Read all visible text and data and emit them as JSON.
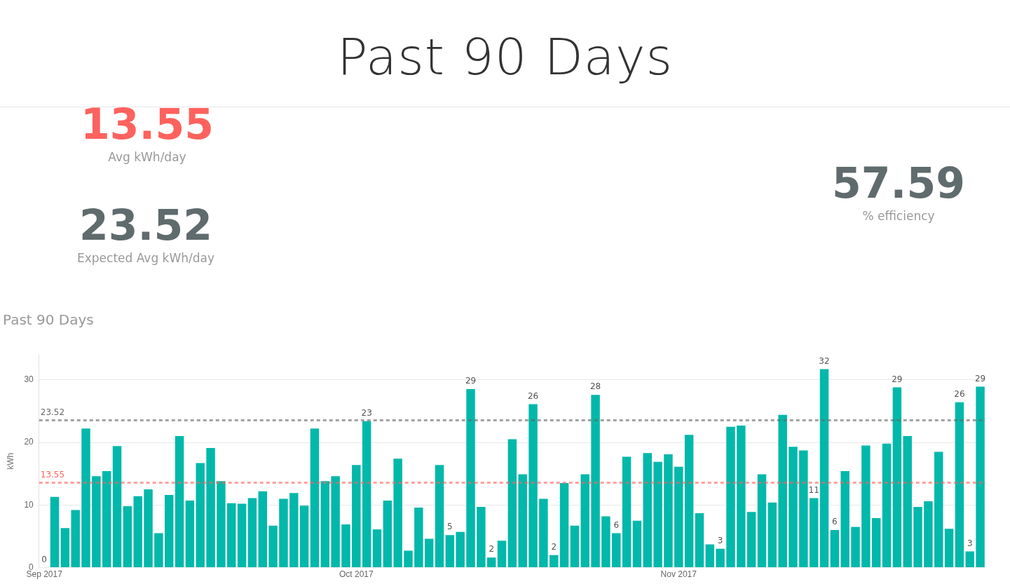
{
  "chart_data": [
    {
      "type": "other",
      "title": "Past 90 Days",
      "annotations": [
        "13.55",
        "Avg kWh/day",
        "23.52",
        "Expected Avg kWh/day",
        "57.59",
        "% efficiency"
      ]
    },
    {
      "type": "bar",
      "title": "Past 90 Days",
      "ylabel": "kWh",
      "color": "#01b8aa",
      "x": [
        "2017-09-01",
        "2017-09-02",
        "2017-09-03",
        "2017-09-04",
        "2017-09-05",
        "2017-09-06",
        "2017-09-07",
        "2017-09-08",
        "2017-09-09",
        "2017-09-10",
        "2017-09-11",
        "2017-09-12",
        "2017-09-13",
        "2017-09-14",
        "2017-09-15",
        "2017-09-16",
        "2017-09-17",
        "2017-09-18",
        "2017-09-19",
        "2017-09-20",
        "2017-09-21",
        "2017-09-22",
        "2017-09-23",
        "2017-09-24",
        "2017-09-25",
        "2017-09-26",
        "2017-09-27",
        "2017-09-28",
        "2017-09-29",
        "2017-09-30",
        "2017-10-01",
        "2017-10-02",
        "2017-10-03",
        "2017-10-04",
        "2017-10-05",
        "2017-10-06",
        "2017-10-07",
        "2017-10-08",
        "2017-10-09",
        "2017-10-10",
        "2017-10-11",
        "2017-10-12",
        "2017-10-13",
        "2017-10-14",
        "2017-10-15",
        "2017-10-16",
        "2017-10-17",
        "2017-10-18",
        "2017-10-19",
        "2017-10-20",
        "2017-10-21",
        "2017-10-22",
        "2017-10-23",
        "2017-10-24",
        "2017-10-25",
        "2017-10-26",
        "2017-10-27",
        "2017-10-28",
        "2017-10-29",
        "2017-10-30",
        "2017-10-31",
        "2017-11-01",
        "2017-11-02",
        "2017-11-03",
        "2017-11-04",
        "2017-11-05",
        "2017-11-06",
        "2017-11-07",
        "2017-11-08",
        "2017-11-09",
        "2017-11-10",
        "2017-11-11",
        "2017-11-12",
        "2017-11-13",
        "2017-11-14",
        "2017-11-15",
        "2017-11-16",
        "2017-11-17",
        "2017-11-18",
        "2017-11-19",
        "2017-11-20",
        "2017-11-21",
        "2017-11-22",
        "2017-11-23",
        "2017-11-24",
        "2017-11-25",
        "2017-11-26",
        "2017-11-27",
        "2017-11-28",
        "2017-11-29",
        "2017-11-30"
      ],
      "values": [
        0,
        11.3,
        6.3,
        9.2,
        22.2,
        14.6,
        15.4,
        19.4,
        9.8,
        11.4,
        12.5,
        5.5,
        11.6,
        21.0,
        10.7,
        16.7,
        19.1,
        13.8,
        10.3,
        10.2,
        11.1,
        12.2,
        6.7,
        11.0,
        11.9,
        9.9,
        22.2,
        13.8,
        14.6,
        6.9,
        16.4,
        23.4,
        6.1,
        10.7,
        17.4,
        2.7,
        9.6,
        4.6,
        16.4,
        5.2,
        5.7,
        28.5,
        9.7,
        1.6,
        4.3,
        20.5,
        14.9,
        26.1,
        11.0,
        2.0,
        13.5,
        6.7,
        14.9,
        27.6,
        8.2,
        5.5,
        17.7,
        7.5,
        18.3,
        16.9,
        18.1,
        16.1,
        21.2,
        8.7,
        3.7,
        3.0,
        22.5,
        22.7,
        8.9,
        14.9,
        10.4,
        24.4,
        19.3,
        18.7,
        11.1,
        31.7,
        6.0,
        15.4,
        6.5,
        19.5,
        7.9,
        19.8,
        28.8,
        21.0,
        9.7,
        10.6,
        18.5,
        6.2,
        26.4,
        2.6,
        28.9
      ],
      "value_labels": [
        "0",
        null,
        null,
        null,
        null,
        null,
        null,
        null,
        null,
        null,
        null,
        null,
        null,
        null,
        null,
        null,
        null,
        null,
        null,
        null,
        null,
        null,
        null,
        null,
        null,
        null,
        null,
        null,
        null,
        null,
        null,
        "23",
        null,
        null,
        null,
        null,
        null,
        null,
        null,
        "5",
        null,
        "29",
        null,
        "2",
        null,
        null,
        null,
        "26",
        null,
        "2",
        null,
        null,
        null,
        "28",
        null,
        "6",
        null,
        null,
        null,
        null,
        null,
        null,
        null,
        null,
        null,
        "3",
        null,
        null,
        null,
        null,
        null,
        null,
        null,
        null,
        "11",
        "32",
        "6",
        null,
        null,
        null,
        null,
        null,
        "29",
        null,
        null,
        null,
        null,
        null,
        "26",
        "3",
        "29"
      ],
      "xlim": [
        "2017-08-31T12:00",
        "2017-11-30T12:00"
      ],
      "xticks": [
        {
          "value": "2017-09-01",
          "label": "Sep 2017"
        },
        {
          "value": "2017-10-01",
          "label": "Oct 2017"
        },
        {
          "value": "2017-11-01",
          "label": "Nov 2017"
        }
      ],
      "ylim": [
        0,
        34
      ],
      "yticks": [
        0,
        10,
        20,
        30
      ],
      "grid": "y",
      "legend": false,
      "ref_lines": [
        {
          "axis": "y",
          "value": 23.52,
          "label": "23.52",
          "color": "#666666",
          "line_style": "dashed"
        },
        {
          "axis": "y",
          "value": 13.55,
          "label": "13.55",
          "color": "#fd625e",
          "line_style": "dashed"
        }
      ]
    }
  ]
}
